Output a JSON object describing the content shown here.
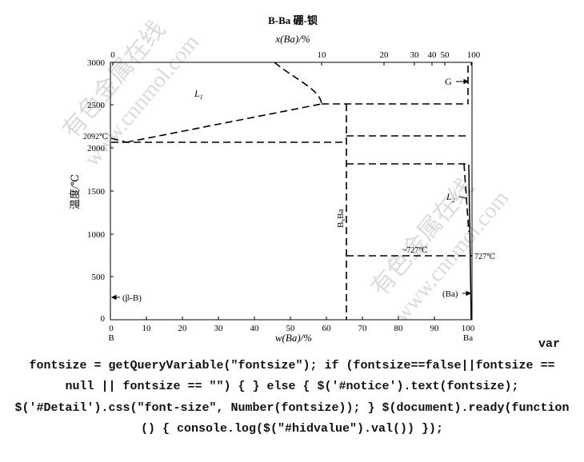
{
  "diagram": {
    "title": "B-Ba 硼-钡",
    "top_axis_label": "x(Ba)/%",
    "top_ticks": [
      "0",
      "10",
      "20",
      "30",
      "40",
      "50",
      "100"
    ],
    "bottom_axis_label": "w(Ba)/%",
    "bottom_ticks": [
      "0",
      "10",
      "20",
      "30",
      "40",
      "50",
      "60",
      "70",
      "80",
      "90",
      "100"
    ],
    "left_axis_label": "温度/℃",
    "left_ticks": [
      "0",
      "500",
      "1000",
      "1500",
      "2000",
      "2500",
      "3000"
    ],
    "end_left": "B",
    "end_right": "Ba",
    "labels": {
      "L1": "L",
      "L1_sub": "1",
      "L2": "L",
      "L2_sub": "2",
      "G": "G",
      "b6ba": "B₆Ba",
      "temp_2092": "2092℃",
      "temp_727_inner": "~727℃",
      "temp_727_right": "727℃",
      "beta_b": "(β-B)",
      "ba_phase": "(Ba)"
    },
    "watermarks": [
      "有色金属在线",
      "www.cnnmol.com"
    ]
  },
  "code": {
    "line1": "var",
    "line2": "fontsize = getQueryVariable(\"fontsize\"); if (fontsize==false||fontsize ==",
    "line3": "null || fontsize == \"\") { } else { $('#notice').text(fontsize);",
    "line4": "$('#Detail').css(\"font-size\", Number(fontsize)); } $(document).ready(function",
    "line5": "() { console.log($(\"#hidvalue\").val()) });"
  }
}
